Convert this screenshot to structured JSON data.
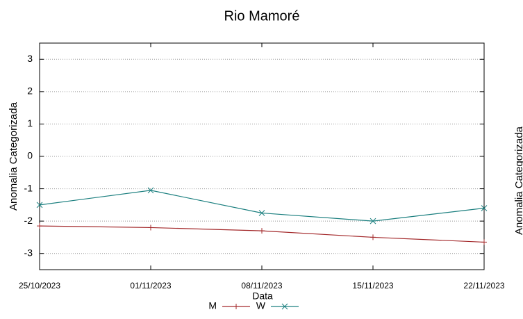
{
  "chart_data": [
    {
      "type": "line",
      "title": "Rio Mamoré",
      "xlabel": "Data",
      "ylabel": "Anomalia Categorizada",
      "categories": [
        "25/10/2023",
        "01/11/2023",
        "08/11/2023",
        "15/11/2023",
        "22/11/2023"
      ],
      "series": [
        {
          "name": "M",
          "color": "#a3282a",
          "marker": "+",
          "values": [
            -2.15,
            -2.2,
            -2.3,
            -2.5,
            -2.65
          ]
        },
        {
          "name": "W",
          "color": "#1b7f7f",
          "marker": "x",
          "values": [
            -1.5,
            -1.05,
            -1.75,
            -2.0,
            -1.6
          ]
        }
      ],
      "ylim": [
        -3.5,
        3.5
      ],
      "yticks": [
        -3,
        -2,
        -1,
        0,
        1,
        2,
        3
      ],
      "grid": true,
      "legend": "bottom"
    },
    {
      "type": "line",
      "ylabel": "Anomalia Categorizada"
    }
  ]
}
